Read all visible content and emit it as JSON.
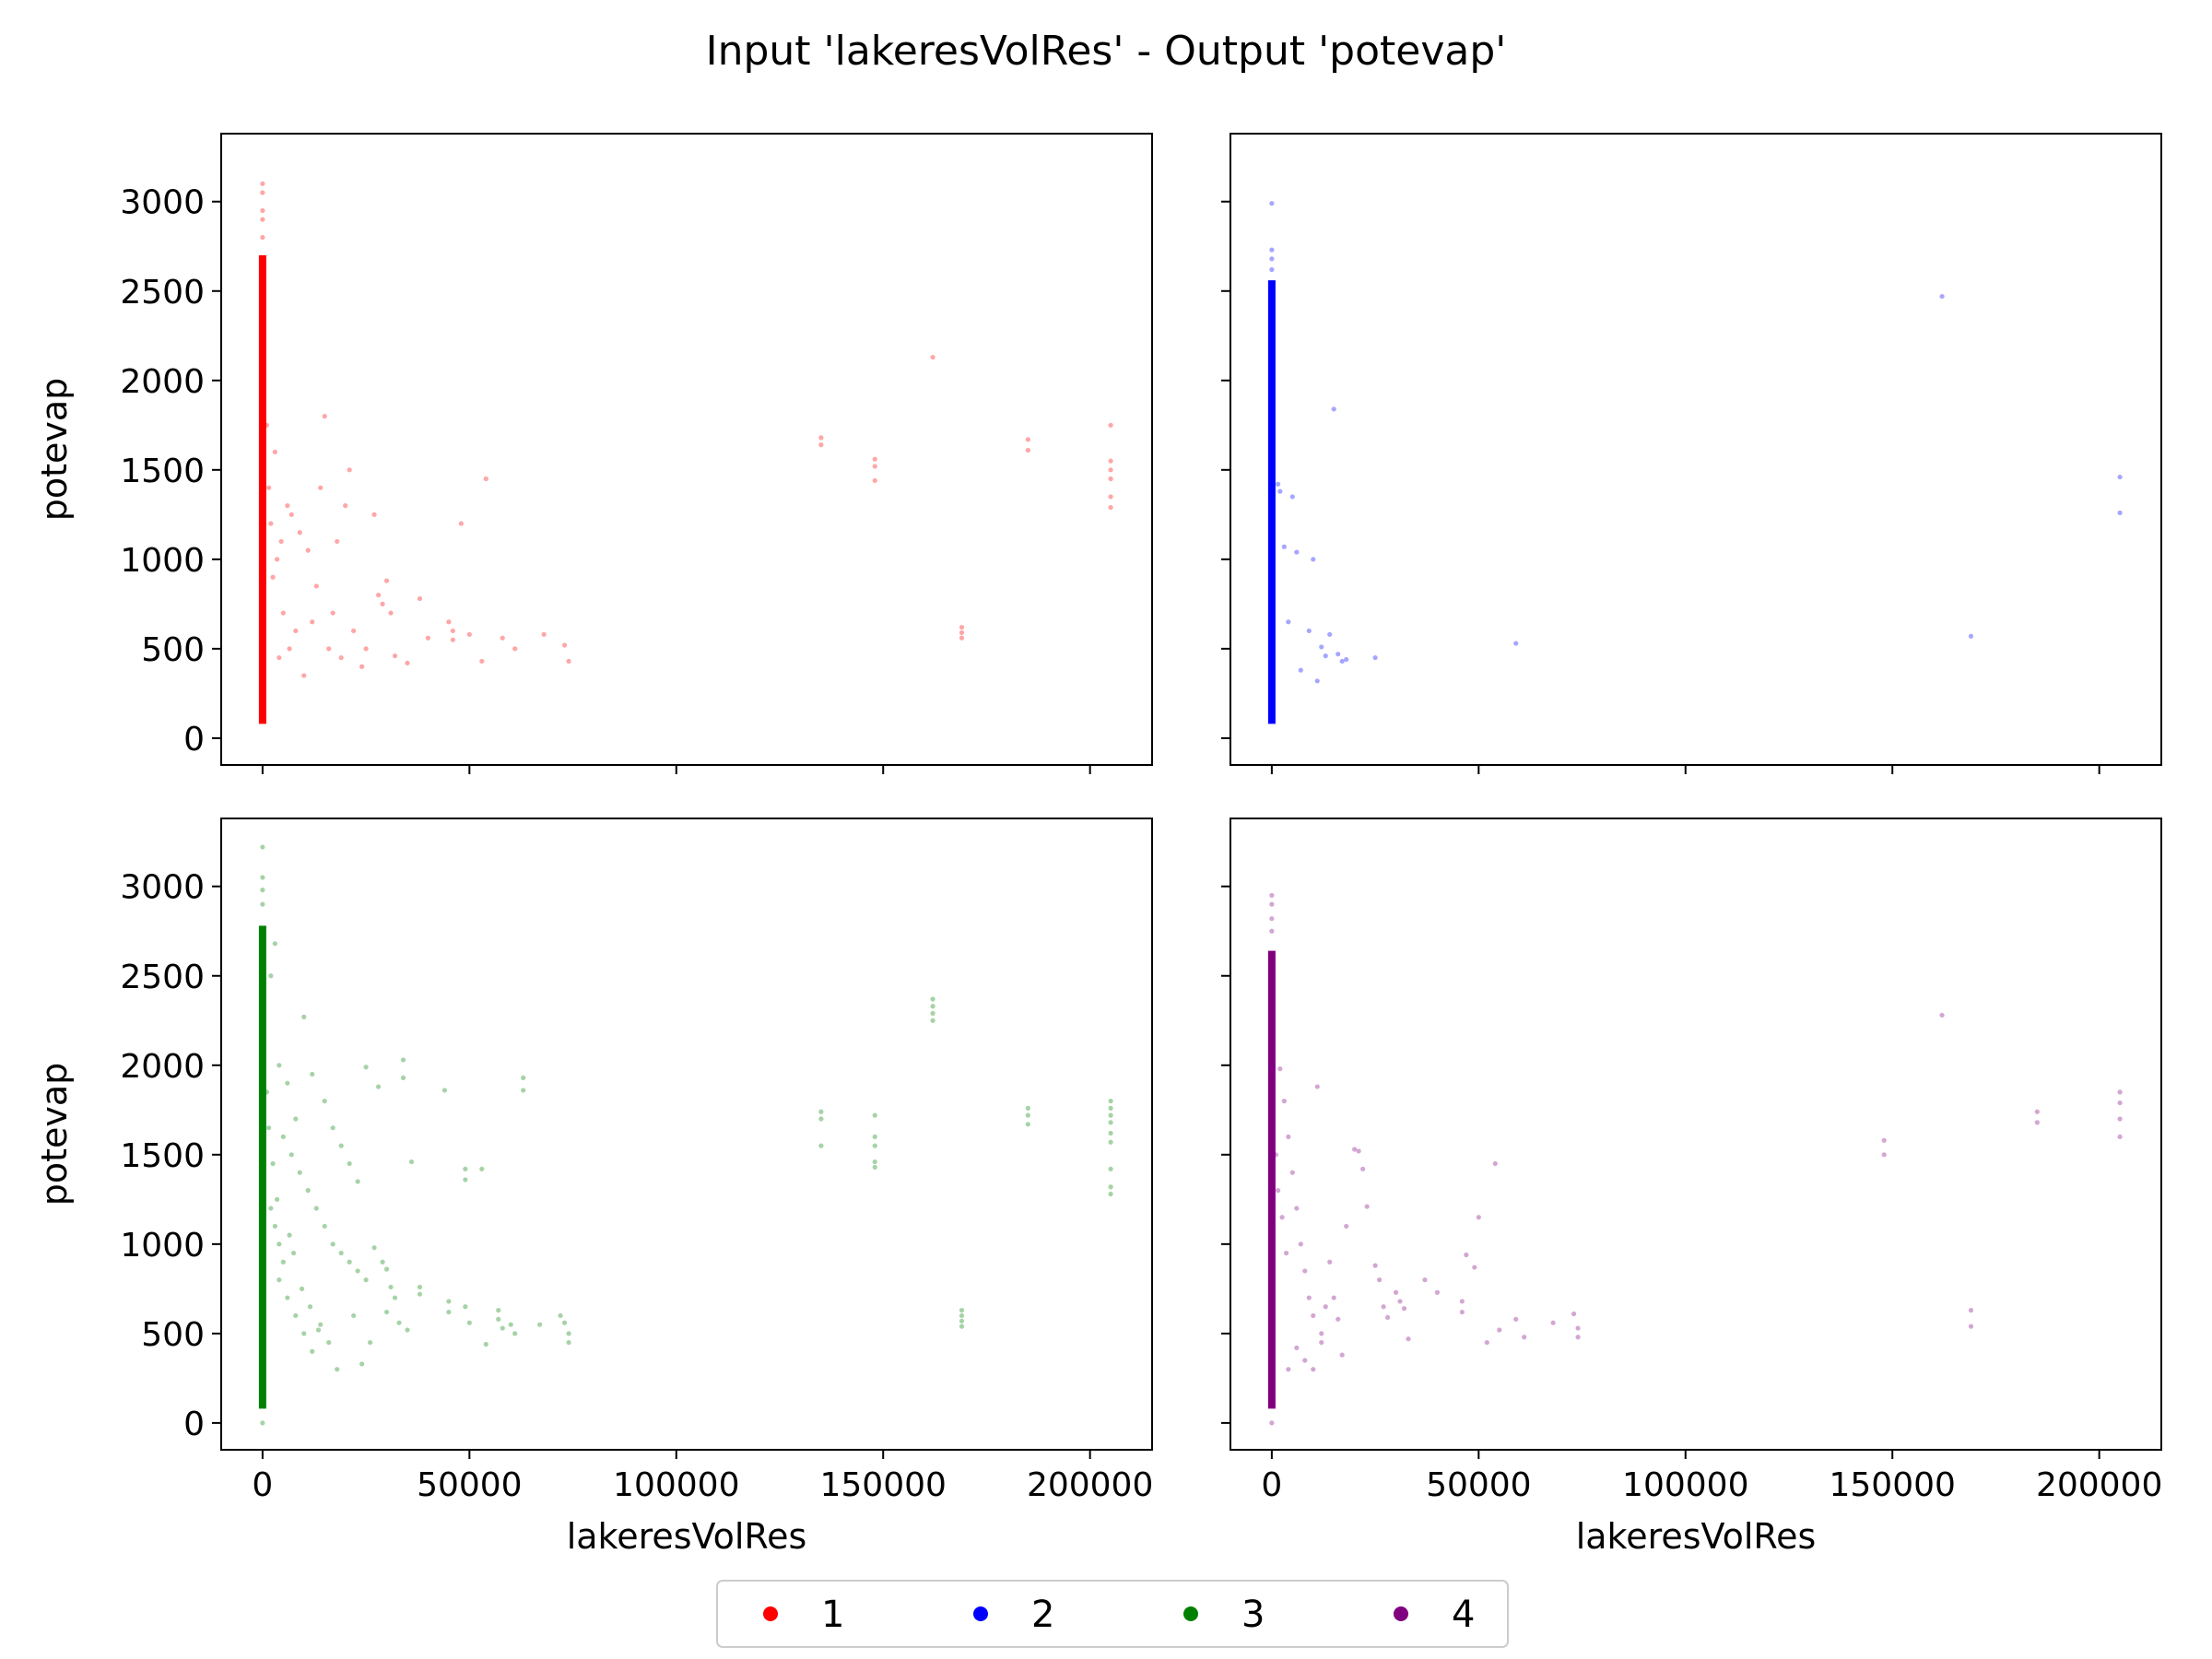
{
  "figure": {
    "title": "Input 'lakeresVolRes' - Output 'potevap'"
  },
  "chart_data": [
    {
      "type": "scatter",
      "panel": "top-left",
      "series_name": "1",
      "color": "#ff0000",
      "xlabel": "",
      "ylabel": "potevap",
      "xlim": [
        -10000,
        215000
      ],
      "ylim": [
        -150,
        3380
      ],
      "xticks": [
        0,
        50000,
        100000,
        150000,
        200000
      ],
      "yticks": [
        0,
        500,
        1000,
        1500,
        2000,
        2500,
        3000
      ],
      "x_tick_labels_shown": false,
      "y_tick_labels_shown": true,
      "dense_column": {
        "x": 0,
        "y_min": 80,
        "y_max": 2700
      },
      "points": [
        [
          0,
          3100
        ],
        [
          0,
          3050
        ],
        [
          0,
          2950
        ],
        [
          0,
          2900
        ],
        [
          0,
          2800
        ],
        [
          1000,
          1750
        ],
        [
          1500,
          1400
        ],
        [
          2000,
          1200
        ],
        [
          2500,
          900
        ],
        [
          3000,
          1600
        ],
        [
          3500,
          1000
        ],
        [
          4000,
          450
        ],
        [
          4500,
          1100
        ],
        [
          5000,
          700
        ],
        [
          6000,
          1300
        ],
        [
          6500,
          500
        ],
        [
          7000,
          1250
        ],
        [
          8000,
          600
        ],
        [
          9000,
          1150
        ],
        [
          10000,
          350
        ],
        [
          11000,
          1050
        ],
        [
          12000,
          650
        ],
        [
          13000,
          850
        ],
        [
          14000,
          1400
        ],
        [
          15000,
          1800
        ],
        [
          16000,
          500
        ],
        [
          17000,
          700
        ],
        [
          18000,
          1100
        ],
        [
          19000,
          450
        ],
        [
          20000,
          1300
        ],
        [
          21000,
          1500
        ],
        [
          22000,
          600
        ],
        [
          24000,
          400
        ],
        [
          25000,
          500
        ],
        [
          27000,
          1250
        ],
        [
          28000,
          800
        ],
        [
          29000,
          750
        ],
        [
          30000,
          880
        ],
        [
          31000,
          700
        ],
        [
          32000,
          460
        ],
        [
          35000,
          420
        ],
        [
          38000,
          780
        ],
        [
          40000,
          560
        ],
        [
          45000,
          650
        ],
        [
          46000,
          600
        ],
        [
          46000,
          550
        ],
        [
          48000,
          1200
        ],
        [
          50000,
          580
        ],
        [
          53000,
          430
        ],
        [
          54000,
          1450
        ],
        [
          58000,
          560
        ],
        [
          61000,
          500
        ],
        [
          68000,
          580
        ],
        [
          73000,
          520
        ],
        [
          74000,
          430
        ],
        [
          135000,
          1680
        ],
        [
          135000,
          1640
        ],
        [
          148000,
          1560
        ],
        [
          148000,
          1520
        ],
        [
          148000,
          1440
        ],
        [
          162000,
          2130
        ],
        [
          169000,
          620
        ],
        [
          169000,
          590
        ],
        [
          169000,
          560
        ],
        [
          185000,
          1670
        ],
        [
          185000,
          1610
        ],
        [
          205000,
          1750
        ],
        [
          205000,
          1550
        ],
        [
          205000,
          1500
        ],
        [
          205000,
          1450
        ],
        [
          205000,
          1350
        ],
        [
          205000,
          1290
        ]
      ]
    },
    {
      "type": "scatter",
      "panel": "top-right",
      "series_name": "2",
      "color": "#0000ff",
      "xlabel": "",
      "ylabel": "",
      "xlim": [
        -10000,
        215000
      ],
      "ylim": [
        -150,
        3380
      ],
      "xticks": [
        0,
        50000,
        100000,
        150000,
        200000
      ],
      "yticks": [
        0,
        500,
        1000,
        1500,
        2000,
        2500,
        3000
      ],
      "x_tick_labels_shown": false,
      "y_tick_labels_shown": false,
      "dense_column": {
        "x": 0,
        "y_min": 80,
        "y_max": 2560
      },
      "points": [
        [
          0,
          2990
        ],
        [
          0,
          2730
        ],
        [
          0,
          2680
        ],
        [
          0,
          2620
        ],
        [
          1500,
          1420
        ],
        [
          2000,
          1380
        ],
        [
          3000,
          1070
        ],
        [
          4000,
          650
        ],
        [
          5000,
          1350
        ],
        [
          6000,
          1040
        ],
        [
          7000,
          380
        ],
        [
          9000,
          600
        ],
        [
          10000,
          1000
        ],
        [
          11000,
          320
        ],
        [
          12000,
          510
        ],
        [
          13000,
          460
        ],
        [
          14000,
          580
        ],
        [
          15000,
          1840
        ],
        [
          16000,
          470
        ],
        [
          17000,
          430
        ],
        [
          18000,
          440
        ],
        [
          25000,
          450
        ],
        [
          59000,
          530
        ],
        [
          162000,
          2470
        ],
        [
          169000,
          570
        ],
        [
          205000,
          1460
        ],
        [
          205000,
          1260
        ]
      ]
    },
    {
      "type": "scatter",
      "panel": "bottom-left",
      "series_name": "3",
      "color": "#008000",
      "xlabel": "lakeresVolRes",
      "ylabel": "potevap",
      "xlim": [
        -10000,
        215000
      ],
      "ylim": [
        -150,
        3380
      ],
      "xticks": [
        0,
        50000,
        100000,
        150000,
        200000
      ],
      "yticks": [
        0,
        500,
        1000,
        1500,
        2000,
        2500,
        3000
      ],
      "x_tick_labels_shown": true,
      "y_tick_labels_shown": true,
      "dense_column": {
        "x": 0,
        "y_min": 80,
        "y_max": 2780
      },
      "points": [
        [
          0,
          3220
        ],
        [
          0,
          3050
        ],
        [
          0,
          2980
        ],
        [
          0,
          2900
        ],
        [
          0,
          0
        ],
        [
          3000,
          2680
        ],
        [
          2000,
          2500
        ],
        [
          4000,
          2000
        ],
        [
          6000,
          1900
        ],
        [
          8000,
          1700
        ],
        [
          10000,
          2270
        ],
        [
          12000,
          1950
        ],
        [
          15000,
          1800
        ],
        [
          17000,
          1650
        ],
        [
          19000,
          1550
        ],
        [
          21000,
          1450
        ],
        [
          23000,
          1350
        ],
        [
          25000,
          1990
        ],
        [
          28000,
          1880
        ],
        [
          34000,
          2030
        ],
        [
          34000,
          1930
        ],
        [
          36000,
          1460
        ],
        [
          44000,
          1860
        ],
        [
          49000,
          1420
        ],
        [
          49000,
          1360
        ],
        [
          53000,
          1420
        ],
        [
          63000,
          1930
        ],
        [
          63000,
          1860
        ],
        [
          5000,
          1600
        ],
        [
          7000,
          1500
        ],
        [
          9000,
          1400
        ],
        [
          11000,
          1300
        ],
        [
          13000,
          1200
        ],
        [
          15000,
          1100
        ],
        [
          17000,
          1000
        ],
        [
          19000,
          950
        ],
        [
          21000,
          900
        ],
        [
          23000,
          850
        ],
        [
          25000,
          800
        ],
        [
          27000,
          980
        ],
        [
          29000,
          900
        ],
        [
          30000,
          860
        ],
        [
          31000,
          760
        ],
        [
          32000,
          700
        ],
        [
          30000,
          620
        ],
        [
          33000,
          560
        ],
        [
          35000,
          520
        ],
        [
          38000,
          760
        ],
        [
          38000,
          720
        ],
        [
          45000,
          680
        ],
        [
          45000,
          620
        ],
        [
          49000,
          650
        ],
        [
          50000,
          560
        ],
        [
          54000,
          440
        ],
        [
          57000,
          630
        ],
        [
          57000,
          580
        ],
        [
          58000,
          530
        ],
        [
          60000,
          550
        ],
        [
          61000,
          500
        ],
        [
          67000,
          550
        ],
        [
          72000,
          600
        ],
        [
          73000,
          560
        ],
        [
          74000,
          500
        ],
        [
          74000,
          450
        ],
        [
          4000,
          800
        ],
        [
          6000,
          700
        ],
        [
          8000,
          600
        ],
        [
          10000,
          500
        ],
        [
          12000,
          400
        ],
        [
          14000,
          550
        ],
        [
          16000,
          450
        ],
        [
          18000,
          300
        ],
        [
          22000,
          600
        ],
        [
          24000,
          330
        ],
        [
          26000,
          450
        ],
        [
          2000,
          1200
        ],
        [
          3000,
          1100
        ],
        [
          4000,
          1000
        ],
        [
          5000,
          900
        ],
        [
          1000,
          1850
        ],
        [
          1500,
          1650
        ],
        [
          2500,
          1450
        ],
        [
          3500,
          1250
        ],
        [
          6500,
          1050
        ],
        [
          7500,
          950
        ],
        [
          9500,
          750
        ],
        [
          11500,
          650
        ],
        [
          13500,
          520
        ],
        [
          135000,
          1740
        ],
        [
          135000,
          1700
        ],
        [
          135000,
          1550
        ],
        [
          148000,
          1720
        ],
        [
          148000,
          1600
        ],
        [
          148000,
          1550
        ],
        [
          148000,
          1460
        ],
        [
          148000,
          1430
        ],
        [
          162000,
          2370
        ],
        [
          162000,
          2330
        ],
        [
          162000,
          2290
        ],
        [
          162000,
          2250
        ],
        [
          169000,
          630
        ],
        [
          169000,
          600
        ],
        [
          169000,
          570
        ],
        [
          169000,
          540
        ],
        [
          185000,
          1760
        ],
        [
          185000,
          1720
        ],
        [
          185000,
          1670
        ],
        [
          205000,
          1800
        ],
        [
          205000,
          1760
        ],
        [
          205000,
          1720
        ],
        [
          205000,
          1680
        ],
        [
          205000,
          1620
        ],
        [
          205000,
          1570
        ],
        [
          205000,
          1420
        ],
        [
          205000,
          1320
        ],
        [
          205000,
          1280
        ]
      ]
    },
    {
      "type": "scatter",
      "panel": "bottom-right",
      "series_name": "4",
      "color": "#800080",
      "xlabel": "lakeresVolRes",
      "ylabel": "",
      "xlim": [
        -10000,
        215000
      ],
      "ylim": [
        -150,
        3380
      ],
      "xticks": [
        0,
        50000,
        100000,
        150000,
        200000
      ],
      "yticks": [
        0,
        500,
        1000,
        1500,
        2000,
        2500,
        3000
      ],
      "x_tick_labels_shown": true,
      "y_tick_labels_shown": false,
      "dense_column": {
        "x": 0,
        "y_min": 80,
        "y_max": 2640
      },
      "points": [
        [
          0,
          2950
        ],
        [
          0,
          2900
        ],
        [
          0,
          2820
        ],
        [
          0,
          2750
        ],
        [
          0,
          0
        ],
        [
          2000,
          1980
        ],
        [
          3000,
          1800
        ],
        [
          4000,
          1600
        ],
        [
          5000,
          1400
        ],
        [
          6000,
          1200
        ],
        [
          7000,
          1000
        ],
        [
          8000,
          850
        ],
        [
          9000,
          700
        ],
        [
          10000,
          600
        ],
        [
          11000,
          1880
        ],
        [
          12000,
          500
        ],
        [
          13000,
          650
        ],
        [
          14000,
          900
        ],
        [
          15000,
          700
        ],
        [
          16000,
          580
        ],
        [
          18000,
          1100
        ],
        [
          20000,
          1530
        ],
        [
          21000,
          1520
        ],
        [
          22000,
          1420
        ],
        [
          23000,
          1210
        ],
        [
          25000,
          880
        ],
        [
          26000,
          800
        ],
        [
          27000,
          650
        ],
        [
          28000,
          590
        ],
        [
          30000,
          730
        ],
        [
          31000,
          680
        ],
        [
          32000,
          640
        ],
        [
          33000,
          470
        ],
        [
          37000,
          800
        ],
        [
          40000,
          730
        ],
        [
          46000,
          680
        ],
        [
          46000,
          620
        ],
        [
          47000,
          940
        ],
        [
          49000,
          870
        ],
        [
          50000,
          1150
        ],
        [
          52000,
          450
        ],
        [
          54000,
          1450
        ],
        [
          55000,
          520
        ],
        [
          59000,
          580
        ],
        [
          61000,
          480
        ],
        [
          68000,
          560
        ],
        [
          73000,
          610
        ],
        [
          74000,
          480
        ],
        [
          74000,
          530
        ],
        [
          4000,
          300
        ],
        [
          6000,
          420
        ],
        [
          8000,
          350
        ],
        [
          10000,
          300
        ],
        [
          12000,
          450
        ],
        [
          17000,
          380
        ],
        [
          1000,
          1500
        ],
        [
          1500,
          1300
        ],
        [
          2500,
          1150
        ],
        [
          3500,
          950
        ],
        [
          148000,
          1580
        ],
        [
          148000,
          1500
        ],
        [
          162000,
          2280
        ],
        [
          169000,
          630
        ],
        [
          169000,
          540
        ],
        [
          185000,
          1740
        ],
        [
          185000,
          1680
        ],
        [
          205000,
          1850
        ],
        [
          205000,
          1790
        ],
        [
          205000,
          1700
        ],
        [
          205000,
          1600
        ]
      ]
    }
  ],
  "legend": {
    "placement": "bottom-center",
    "entries": [
      {
        "label": "1",
        "color": "#ff0000"
      },
      {
        "label": "2",
        "color": "#0000ff"
      },
      {
        "label": "3",
        "color": "#008000"
      },
      {
        "label": "4",
        "color": "#800080"
      }
    ]
  }
}
